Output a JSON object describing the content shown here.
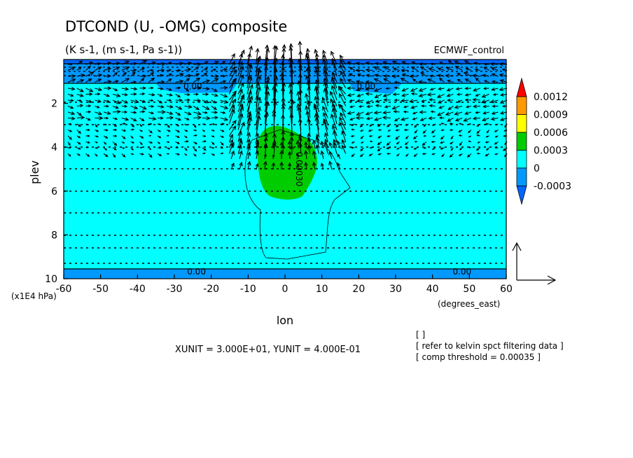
{
  "chart_data": {
    "type": "contour",
    "title": "DTCOND (U, -OMG) composite",
    "subtitle": "(K s-1, (m s-1, Pa s-1))",
    "dataset": "ECMWF_control",
    "xlabel": "lon",
    "ylabel": "plev",
    "x_units": "(degrees_east)",
    "y_units": "(x1E4 hPa)",
    "xlim": [
      -60,
      60
    ],
    "ylim": [
      10,
      0
    ],
    "x_ticks": [
      -60,
      -50,
      -40,
      -30,
      -20,
      -10,
      0,
      10,
      20,
      30,
      40,
      50,
      60
    ],
    "y_ticks": [
      2,
      4,
      6,
      8,
      10
    ],
    "colorbar": {
      "levels": [
        "0.0012",
        "0.0009",
        "0.0006",
        "0.0003",
        "0",
        "-0.0003"
      ],
      "colors": [
        "#ff0000",
        "#ff9900",
        "#ffff00",
        "#00cc00",
        "#00ffff",
        "#0099ff",
        "#0066ff"
      ]
    },
    "contour_labels": [
      {
        "text": "0.00",
        "lon": -25,
        "plev": 1.2
      },
      {
        "text": "0.00",
        "lon": 22,
        "plev": 1.2
      },
      {
        "text": "0.00",
        "lon": -24,
        "plev": 9.65
      },
      {
        "text": "0.00",
        "lon": 48,
        "plev": 9.65
      },
      {
        "text": "0.00030",
        "lon": 4,
        "plev": 5.0
      }
    ],
    "vector_reference": {
      "xunit": "3.000E+01",
      "yunit": "4.000E-01"
    },
    "footer": {
      "xyunit_line": "XUNIT = 3.000E+01, YUNIT = 4.000E-01",
      "bracket_empty": "[  ]",
      "note1": "[ refer to kelvin spct filtering data ]",
      "note2": "[ comp threshold = 0.00035 ]"
    }
  }
}
